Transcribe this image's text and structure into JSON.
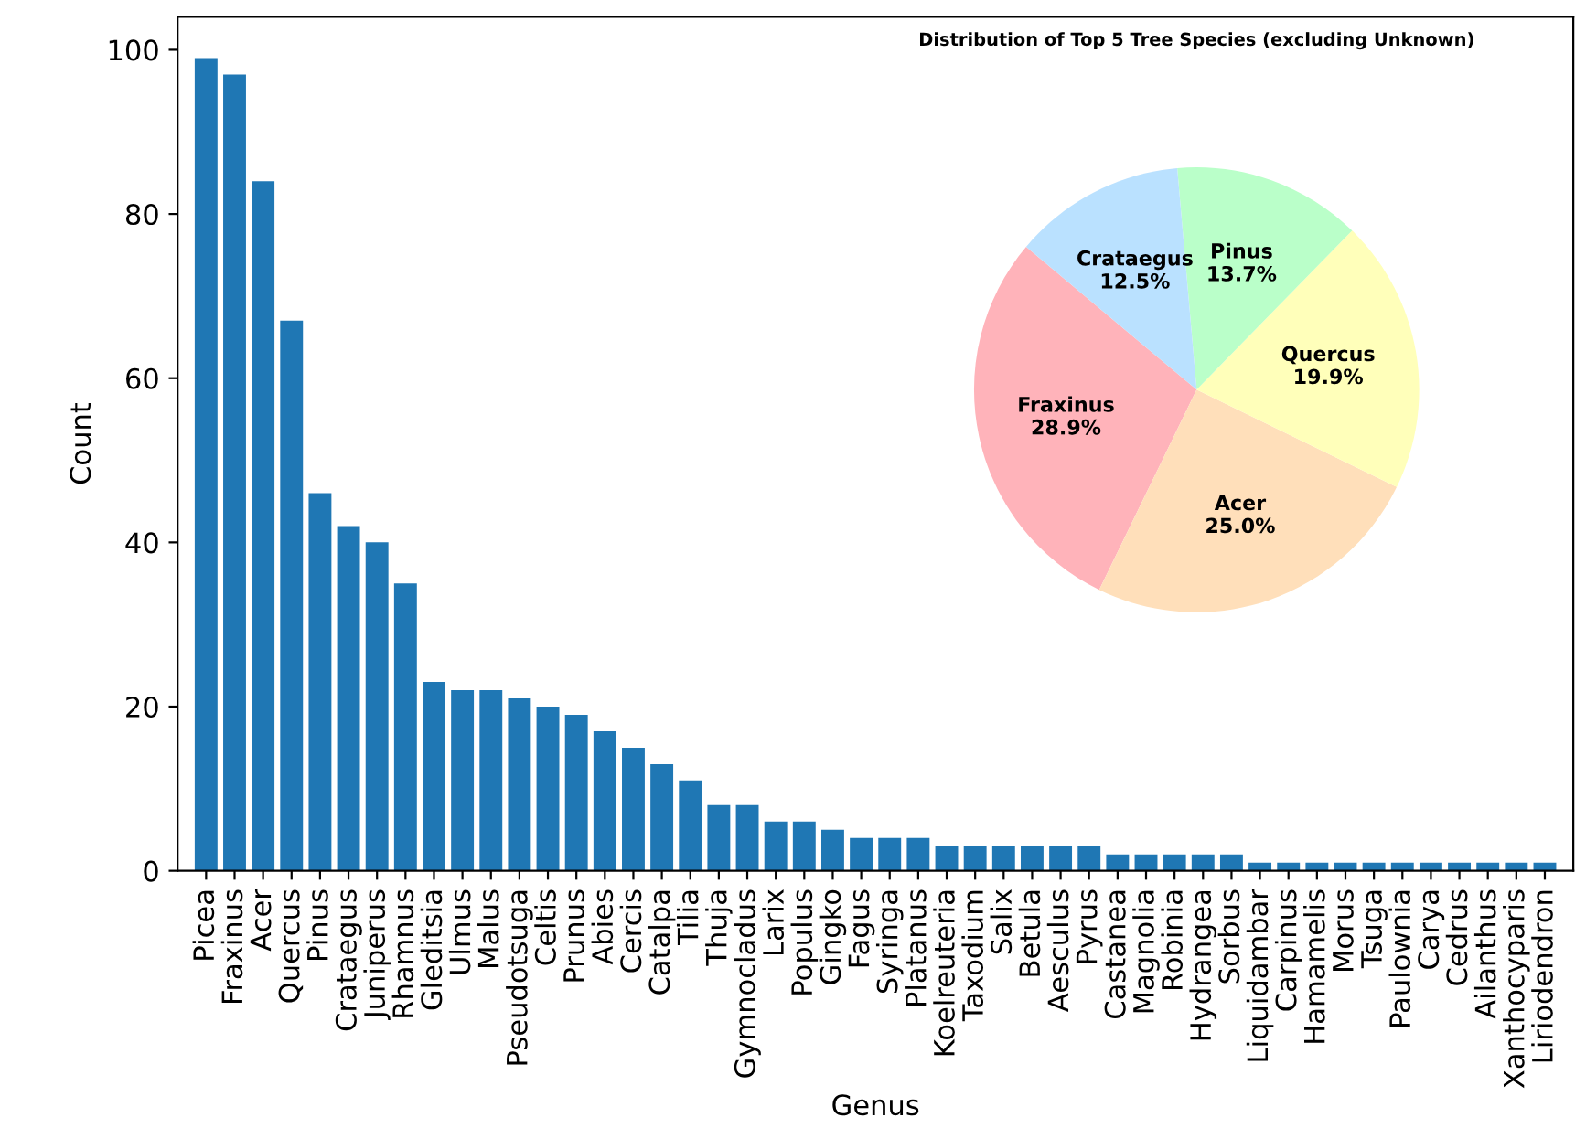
{
  "chart_data": [
    {
      "type": "bar",
      "xlabel": "Genus",
      "ylabel": "Count",
      "color": "#1f77b4",
      "categories": [
        "Picea",
        "Fraxinus",
        "Acer",
        "Quercus",
        "Pinus",
        "Crataegus",
        "Juniperus",
        "Rhamnus",
        "Gleditsia",
        "Ulmus",
        "Malus",
        "Pseudotsuga",
        "Celtis",
        "Prunus",
        "Abies",
        "Cercis",
        "Catalpa",
        "Tilia",
        "Thuja",
        "Gymnocladus",
        "Larix",
        "Populus",
        "Gingko",
        "Fagus",
        "Syringa",
        "Platanus",
        "Koelreuteria",
        "Taxodium",
        "Salix",
        "Betula",
        "Aesculus",
        "Pyrus",
        "Castanea",
        "Magnolia",
        "Robinia",
        "Hydrangea",
        "Sorbus",
        "Liquidambar",
        "Carpinus",
        "Hamamelis",
        "Morus",
        "Tsuga",
        "Paulownia",
        "Carya",
        "Cedrus",
        "Ailanthus",
        "Xanthocyparis",
        "Liriodendron"
      ],
      "values": [
        99,
        97,
        84,
        67,
        46,
        42,
        40,
        35,
        23,
        22,
        22,
        21,
        20,
        19,
        17,
        15,
        13,
        11,
        8,
        8,
        6,
        6,
        5,
        4,
        4,
        4,
        3,
        3,
        3,
        3,
        3,
        3,
        2,
        2,
        2,
        2,
        2,
        1,
        1,
        1,
        1,
        1,
        1,
        1,
        1,
        1,
        1,
        1
      ],
      "ylim": [
        0,
        104
      ],
      "yticks": [
        0,
        20,
        40,
        60,
        80,
        100
      ],
      "grid": false,
      "legend": false
    },
    {
      "type": "pie",
      "title": "Distribution of Top 5 Tree Species (excluding Unknown)",
      "categories": [
        "Fraxinus",
        "Acer",
        "Quercus",
        "Pinus",
        "Crataegus"
      ],
      "values": [
        28.9,
        25.0,
        19.9,
        13.7,
        12.5
      ],
      "value_labels": [
        "28.9%",
        "25.0%",
        "19.9%",
        "13.7%",
        "12.5%"
      ],
      "colors": [
        "#ffb3ba",
        "#ffdfba",
        "#ffffba",
        "#baffc9",
        "#bae1ff"
      ],
      "legend": false
    }
  ]
}
